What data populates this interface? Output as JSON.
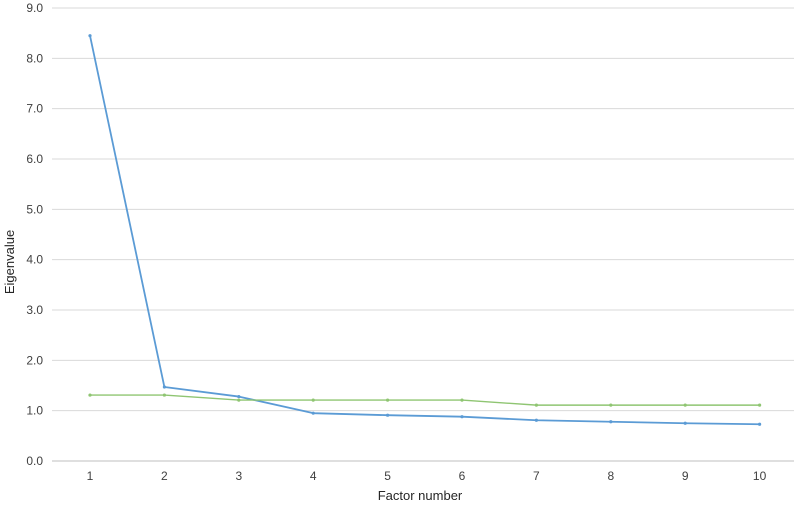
{
  "chart_data": {
    "type": "line",
    "title": "",
    "xlabel": "Factor number",
    "ylabel": "Eigenvalue",
    "x": [
      1,
      2,
      3,
      4,
      5,
      6,
      7,
      8,
      9,
      10
    ],
    "ylim": [
      0,
      9
    ],
    "yticks": [
      "0.0",
      "1.0",
      "2.0",
      "3.0",
      "4.0",
      "5.0",
      "6.0",
      "7.0",
      "8.0",
      "9.0"
    ],
    "grid": true,
    "legend": "none",
    "series": [
      {
        "color": "#5b9bd5",
        "values": [
          8.45,
          1.47,
          1.28,
          0.95,
          0.91,
          0.88,
          0.81,
          0.78,
          0.75,
          0.73
        ]
      },
      {
        "color": "#8fc572",
        "values": [
          1.31,
          1.31,
          1.21,
          1.21,
          1.21,
          1.21,
          1.11,
          1.11,
          1.11,
          1.11
        ]
      }
    ]
  }
}
